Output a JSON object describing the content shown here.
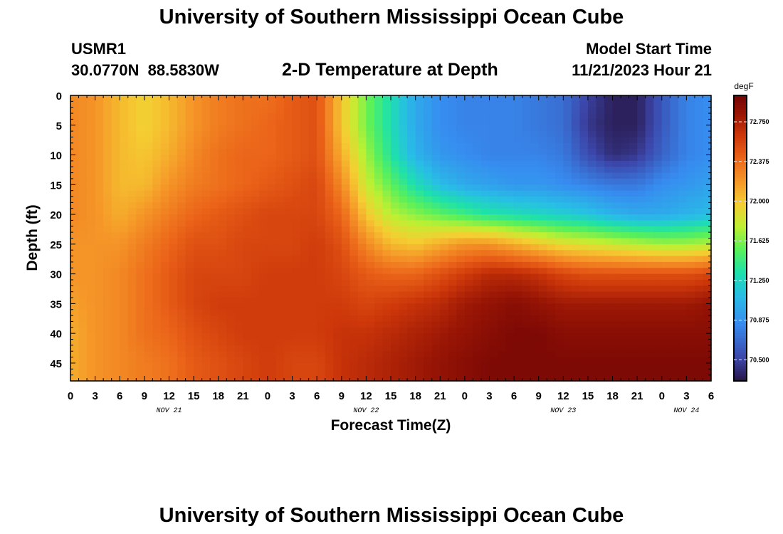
{
  "header": {
    "title": "University of Southern Mississippi Ocean Cube",
    "station_id": "USMR1",
    "coordinates": "30.0770N  88.5830W",
    "plot_title": "2-D Temperature at Depth",
    "model_start_label": "Model Start Time",
    "model_start_value": "11/21/2023 Hour 21"
  },
  "footer": {
    "title": "University of Southern Mississippi Ocean Cube"
  },
  "chart_data": {
    "type": "heatmap",
    "title": "2-D Temperature at Depth",
    "xlabel": "Forecast Time(Z)",
    "ylabel": "Depth (ft)",
    "x_tick_labels": [
      "0",
      "3",
      "6",
      "9",
      "12",
      "15",
      "18",
      "21",
      "0",
      "3",
      "6",
      "9",
      "12",
      "15",
      "18",
      "21",
      "0",
      "3",
      "6",
      "9",
      "12",
      "15",
      "18",
      "21",
      "0",
      "3",
      "6"
    ],
    "date_labels": [
      {
        "text": "NOV 21",
        "hour_index": 4
      },
      {
        "text": "NOV 22",
        "hour_index": 12
      },
      {
        "text": "NOV 23",
        "hour_index": 20
      },
      {
        "text": "NOV 24",
        "hour_index": 25
      }
    ],
    "x_range_hours": [
      0,
      78
    ],
    "y_ticks": [
      0,
      5,
      10,
      15,
      20,
      25,
      30,
      35,
      40,
      45
    ],
    "y_range_ft": [
      0,
      48
    ],
    "colorbar": {
      "unit": "degF",
      "min": 70.3,
      "max": 73.0,
      "ticks": [
        "72.750",
        "72.375",
        "72.000",
        "71.625",
        "71.250",
        "70.875",
        "70.500"
      ],
      "tick_values": [
        72.75,
        72.375,
        72.0,
        71.625,
        71.25,
        70.875,
        70.5
      ]
    },
    "depth_profile_ft": [
      0,
      5,
      10,
      15,
      20,
      25,
      30,
      35,
      40,
      45,
      48
    ],
    "columns": [
      {
        "hour": 0,
        "temps_degF": [
          72.25,
          72.25,
          72.25,
          72.25,
          72.25,
          72.2,
          72.2,
          72.15,
          72.1,
          72.1,
          72.1
        ]
      },
      {
        "hour": 3,
        "temps_degF": [
          72.2,
          72.2,
          72.2,
          72.2,
          72.2,
          72.2,
          72.2,
          72.2,
          72.2,
          72.2,
          72.2
        ]
      },
      {
        "hour": 6,
        "temps_degF": [
          72.05,
          72.05,
          72.05,
          72.05,
          72.1,
          72.2,
          72.25,
          72.25,
          72.25,
          72.25,
          72.25
        ]
      },
      {
        "hour": 9,
        "temps_degF": [
          71.95,
          71.95,
          72.0,
          72.05,
          72.2,
          72.3,
          72.35,
          72.35,
          72.35,
          72.3,
          72.3
        ]
      },
      {
        "hour": 12,
        "temps_degF": [
          72.05,
          72.05,
          72.1,
          72.2,
          72.3,
          72.4,
          72.45,
          72.45,
          72.4,
          72.35,
          72.35
        ]
      },
      {
        "hour": 15,
        "temps_degF": [
          72.2,
          72.2,
          72.25,
          72.3,
          72.4,
          72.5,
          72.55,
          72.55,
          72.5,
          72.45,
          72.45
        ]
      },
      {
        "hour": 18,
        "temps_degF": [
          72.3,
          72.3,
          72.35,
          72.35,
          72.45,
          72.5,
          72.55,
          72.6,
          72.55,
          72.5,
          72.5
        ]
      },
      {
        "hour": 21,
        "temps_degF": [
          72.35,
          72.35,
          72.4,
          72.4,
          72.5,
          72.55,
          72.55,
          72.6,
          72.6,
          72.55,
          72.55
        ]
      },
      {
        "hour": 24,
        "temps_degF": [
          72.35,
          72.4,
          72.4,
          72.45,
          72.55,
          72.55,
          72.6,
          72.6,
          72.6,
          72.6,
          72.6
        ]
      },
      {
        "hour": 27,
        "temps_degF": [
          72.45,
          72.45,
          72.45,
          72.5,
          72.55,
          72.55,
          72.6,
          72.6,
          72.6,
          72.55,
          72.55
        ]
      },
      {
        "hour": 30,
        "temps_degF": [
          72.5,
          72.5,
          72.5,
          72.55,
          72.55,
          72.6,
          72.6,
          72.6,
          72.6,
          72.55,
          72.55
        ]
      },
      {
        "hour": 33,
        "temps_degF": [
          72.0,
          72.0,
          72.1,
          72.25,
          72.4,
          72.5,
          72.55,
          72.6,
          72.65,
          72.65,
          72.65
        ]
      },
      {
        "hour": 36,
        "temps_degF": [
          71.6,
          71.6,
          71.7,
          71.8,
          72.0,
          72.25,
          72.45,
          72.55,
          72.65,
          72.7,
          72.7
        ]
      },
      {
        "hour": 39,
        "temps_degF": [
          71.3,
          71.3,
          71.35,
          71.55,
          71.75,
          72.05,
          72.4,
          72.6,
          72.7,
          72.75,
          72.75
        ]
      },
      {
        "hour": 42,
        "temps_degF": [
          71.0,
          71.0,
          71.05,
          71.3,
          71.65,
          72.0,
          72.4,
          72.65,
          72.75,
          72.8,
          72.8
        ]
      },
      {
        "hour": 45,
        "temps_degF": [
          70.85,
          70.85,
          70.9,
          71.1,
          71.55,
          72.1,
          72.5,
          72.7,
          72.8,
          72.85,
          72.85
        ]
      },
      {
        "hour": 48,
        "temps_degF": [
          70.8,
          70.8,
          70.85,
          71.0,
          71.45,
          72.2,
          72.6,
          72.8,
          72.85,
          72.9,
          72.9
        ]
      },
      {
        "hour": 51,
        "temps_degF": [
          70.8,
          70.8,
          70.8,
          70.95,
          71.35,
          72.2,
          72.7,
          72.85,
          72.9,
          72.95,
          72.95
        ]
      },
      {
        "hour": 54,
        "temps_degF": [
          70.8,
          70.8,
          70.8,
          70.9,
          71.3,
          72.1,
          72.7,
          72.9,
          72.95,
          72.95,
          72.95
        ]
      },
      {
        "hour": 57,
        "temps_degF": [
          70.75,
          70.75,
          70.8,
          70.9,
          71.25,
          72.0,
          72.65,
          72.85,
          72.95,
          72.95,
          72.95
        ]
      },
      {
        "hour": 60,
        "temps_degF": [
          70.7,
          70.7,
          70.75,
          70.85,
          71.2,
          71.9,
          72.55,
          72.8,
          72.9,
          72.95,
          72.95
        ]
      },
      {
        "hour": 63,
        "temps_degF": [
          70.5,
          70.45,
          70.55,
          70.8,
          71.15,
          71.85,
          72.5,
          72.8,
          72.9,
          72.95,
          72.95
        ]
      },
      {
        "hour": 66,
        "temps_degF": [
          70.35,
          70.35,
          70.4,
          70.75,
          71.05,
          71.8,
          72.5,
          72.8,
          72.9,
          72.95,
          72.95
        ]
      },
      {
        "hour": 69,
        "temps_degF": [
          70.35,
          70.35,
          70.45,
          70.75,
          71.0,
          71.75,
          72.5,
          72.8,
          72.9,
          72.95,
          72.95
        ]
      },
      {
        "hour": 72,
        "temps_degF": [
          70.6,
          70.6,
          70.65,
          70.85,
          71.0,
          71.7,
          72.5,
          72.8,
          72.9,
          72.95,
          72.95
        ]
      },
      {
        "hour": 75,
        "temps_degF": [
          70.8,
          70.8,
          70.8,
          70.9,
          71.05,
          71.7,
          72.5,
          72.8,
          72.9,
          72.95,
          72.95
        ]
      },
      {
        "hour": 78,
        "temps_degF": [
          70.85,
          70.85,
          70.85,
          70.95,
          71.1,
          71.75,
          72.55,
          72.85,
          72.9,
          72.95,
          72.95
        ]
      }
    ]
  }
}
